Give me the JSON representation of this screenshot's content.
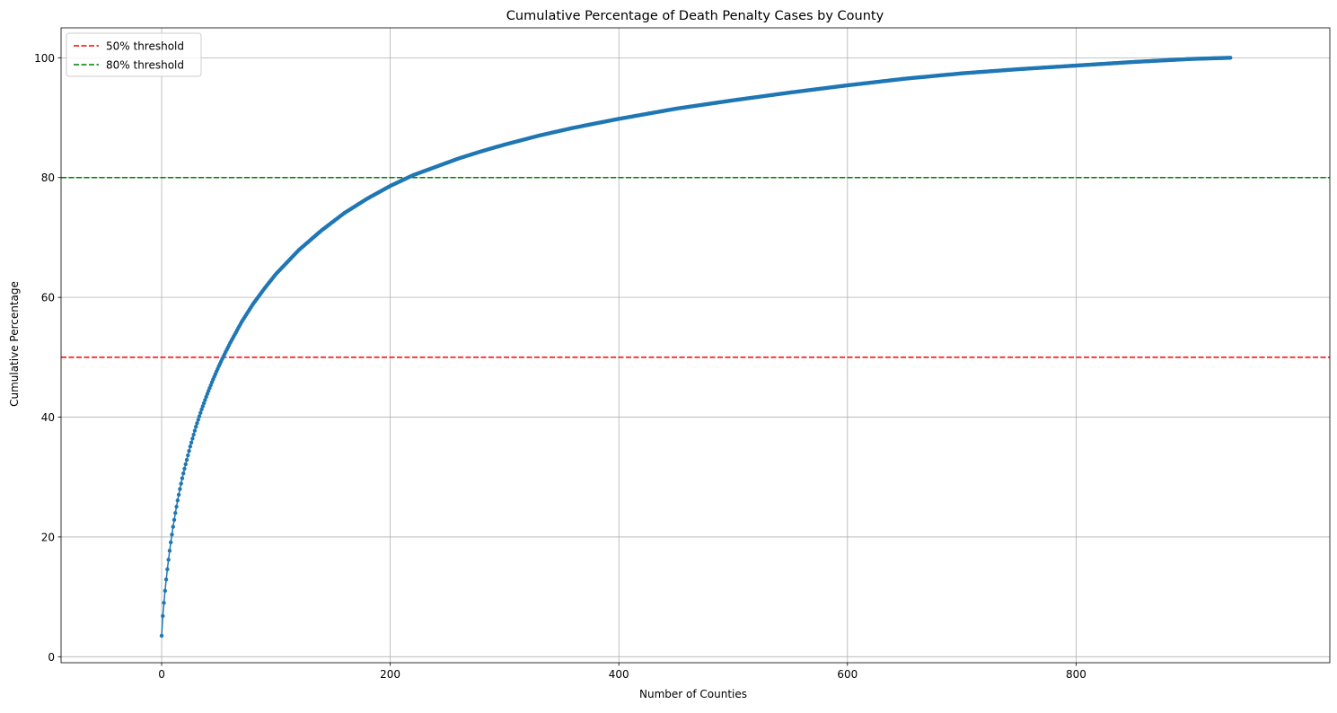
{
  "chart_data": {
    "type": "line",
    "title": "Cumulative Percentage of Death Penalty Cases by County",
    "xlabel": "Number of Counties",
    "ylabel": "Cumulative Percentage",
    "xlim": [
      -88,
      1022
    ],
    "ylim": [
      -1,
      105
    ],
    "xticks": [
      0,
      200,
      400,
      600,
      800
    ],
    "yticks": [
      0,
      20,
      40,
      60,
      80,
      100
    ],
    "xtick_labels": [
      "0",
      "200",
      "400",
      "600",
      "800"
    ],
    "ytick_labels": [
      "0",
      "20",
      "40",
      "60",
      "80",
      "100"
    ],
    "grid": true,
    "legend_position": "top-left",
    "series": [
      {
        "color": "#1f77b4",
        "marker": "dot",
        "n_points": 935,
        "x": [
          0,
          1,
          2,
          3,
          4,
          5,
          6,
          7,
          8,
          9,
          10,
          12,
          14,
          16,
          18,
          20,
          25,
          30,
          35,
          40,
          45,
          50,
          55,
          60,
          70,
          80,
          90,
          100,
          120,
          140,
          160,
          180,
          200,
          220,
          240,
          260,
          280,
          300,
          330,
          360,
          400,
          450,
          500,
          550,
          600,
          650,
          700,
          750,
          800,
          850,
          900,
          935
        ],
        "y": [
          3.5,
          6.8,
          9.0,
          11.0,
          12.9,
          14.6,
          16.2,
          17.7,
          19.1,
          20.4,
          21.7,
          24.0,
          26.1,
          28.0,
          29.8,
          31.4,
          35.1,
          38.4,
          41.3,
          43.9,
          46.3,
          48.5,
          50.5,
          52.4,
          55.9,
          58.9,
          61.5,
          63.9,
          67.9,
          71.2,
          74.1,
          76.5,
          78.6,
          80.4,
          81.8,
          83.2,
          84.4,
          85.5,
          87.0,
          88.3,
          89.8,
          91.5,
          92.9,
          94.2,
          95.4,
          96.5,
          97.4,
          98.1,
          98.7,
          99.3,
          99.8,
          100.0
        ]
      }
    ],
    "reference_lines": [
      {
        "name": "50% threshold",
        "y": 50,
        "color": "#ff0000",
        "style": "dashed"
      },
      {
        "name": "80% threshold",
        "y": 80,
        "color": "#008000",
        "style": "dashed"
      }
    ]
  }
}
